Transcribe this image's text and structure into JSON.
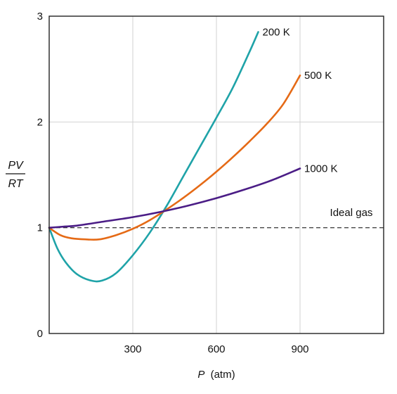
{
  "chart_data": {
    "type": "line",
    "xlabel_var": "P",
    "xlabel_unit": "(atm)",
    "ylabel_top": "PV",
    "ylabel_bottom": "RT",
    "xlim": [
      0,
      1200
    ],
    "ylim": [
      0,
      3
    ],
    "x_ticks": [
      "300",
      "600",
      "900"
    ],
    "y_ticks": [
      "0",
      "1",
      "2",
      "3"
    ],
    "grid": true,
    "reference_line": {
      "y": 1,
      "label": "Ideal gas",
      "style": "dashed"
    },
    "series": [
      {
        "name": "200 K",
        "color": "#1fa3a8",
        "x": [
          0,
          30,
          60,
          100,
          150,
          190,
          240,
          300,
          360,
          420,
          480,
          540,
          600,
          660,
          720,
          750
        ],
        "y": [
          1.0,
          0.8,
          0.67,
          0.56,
          0.5,
          0.5,
          0.57,
          0.74,
          0.95,
          1.2,
          1.48,
          1.76,
          2.04,
          2.33,
          2.67,
          2.85
        ]
      },
      {
        "name": "500 K",
        "color": "#e56a16",
        "x": [
          0,
          40,
          80,
          130,
          180,
          240,
          300,
          360,
          420,
          480,
          540,
          600,
          660,
          720,
          780,
          840,
          900
        ],
        "y": [
          1.0,
          0.93,
          0.9,
          0.89,
          0.89,
          0.93,
          0.99,
          1.07,
          1.17,
          1.28,
          1.4,
          1.53,
          1.67,
          1.82,
          1.98,
          2.17,
          2.44
        ]
      },
      {
        "name": "1000 K",
        "color": "#4b1d86",
        "x": [
          0,
          50,
          100,
          200,
          300,
          400,
          500,
          600,
          700,
          800,
          900
        ],
        "y": [
          1.0,
          1.01,
          1.02,
          1.06,
          1.1,
          1.15,
          1.21,
          1.28,
          1.36,
          1.45,
          1.56
        ]
      }
    ]
  }
}
